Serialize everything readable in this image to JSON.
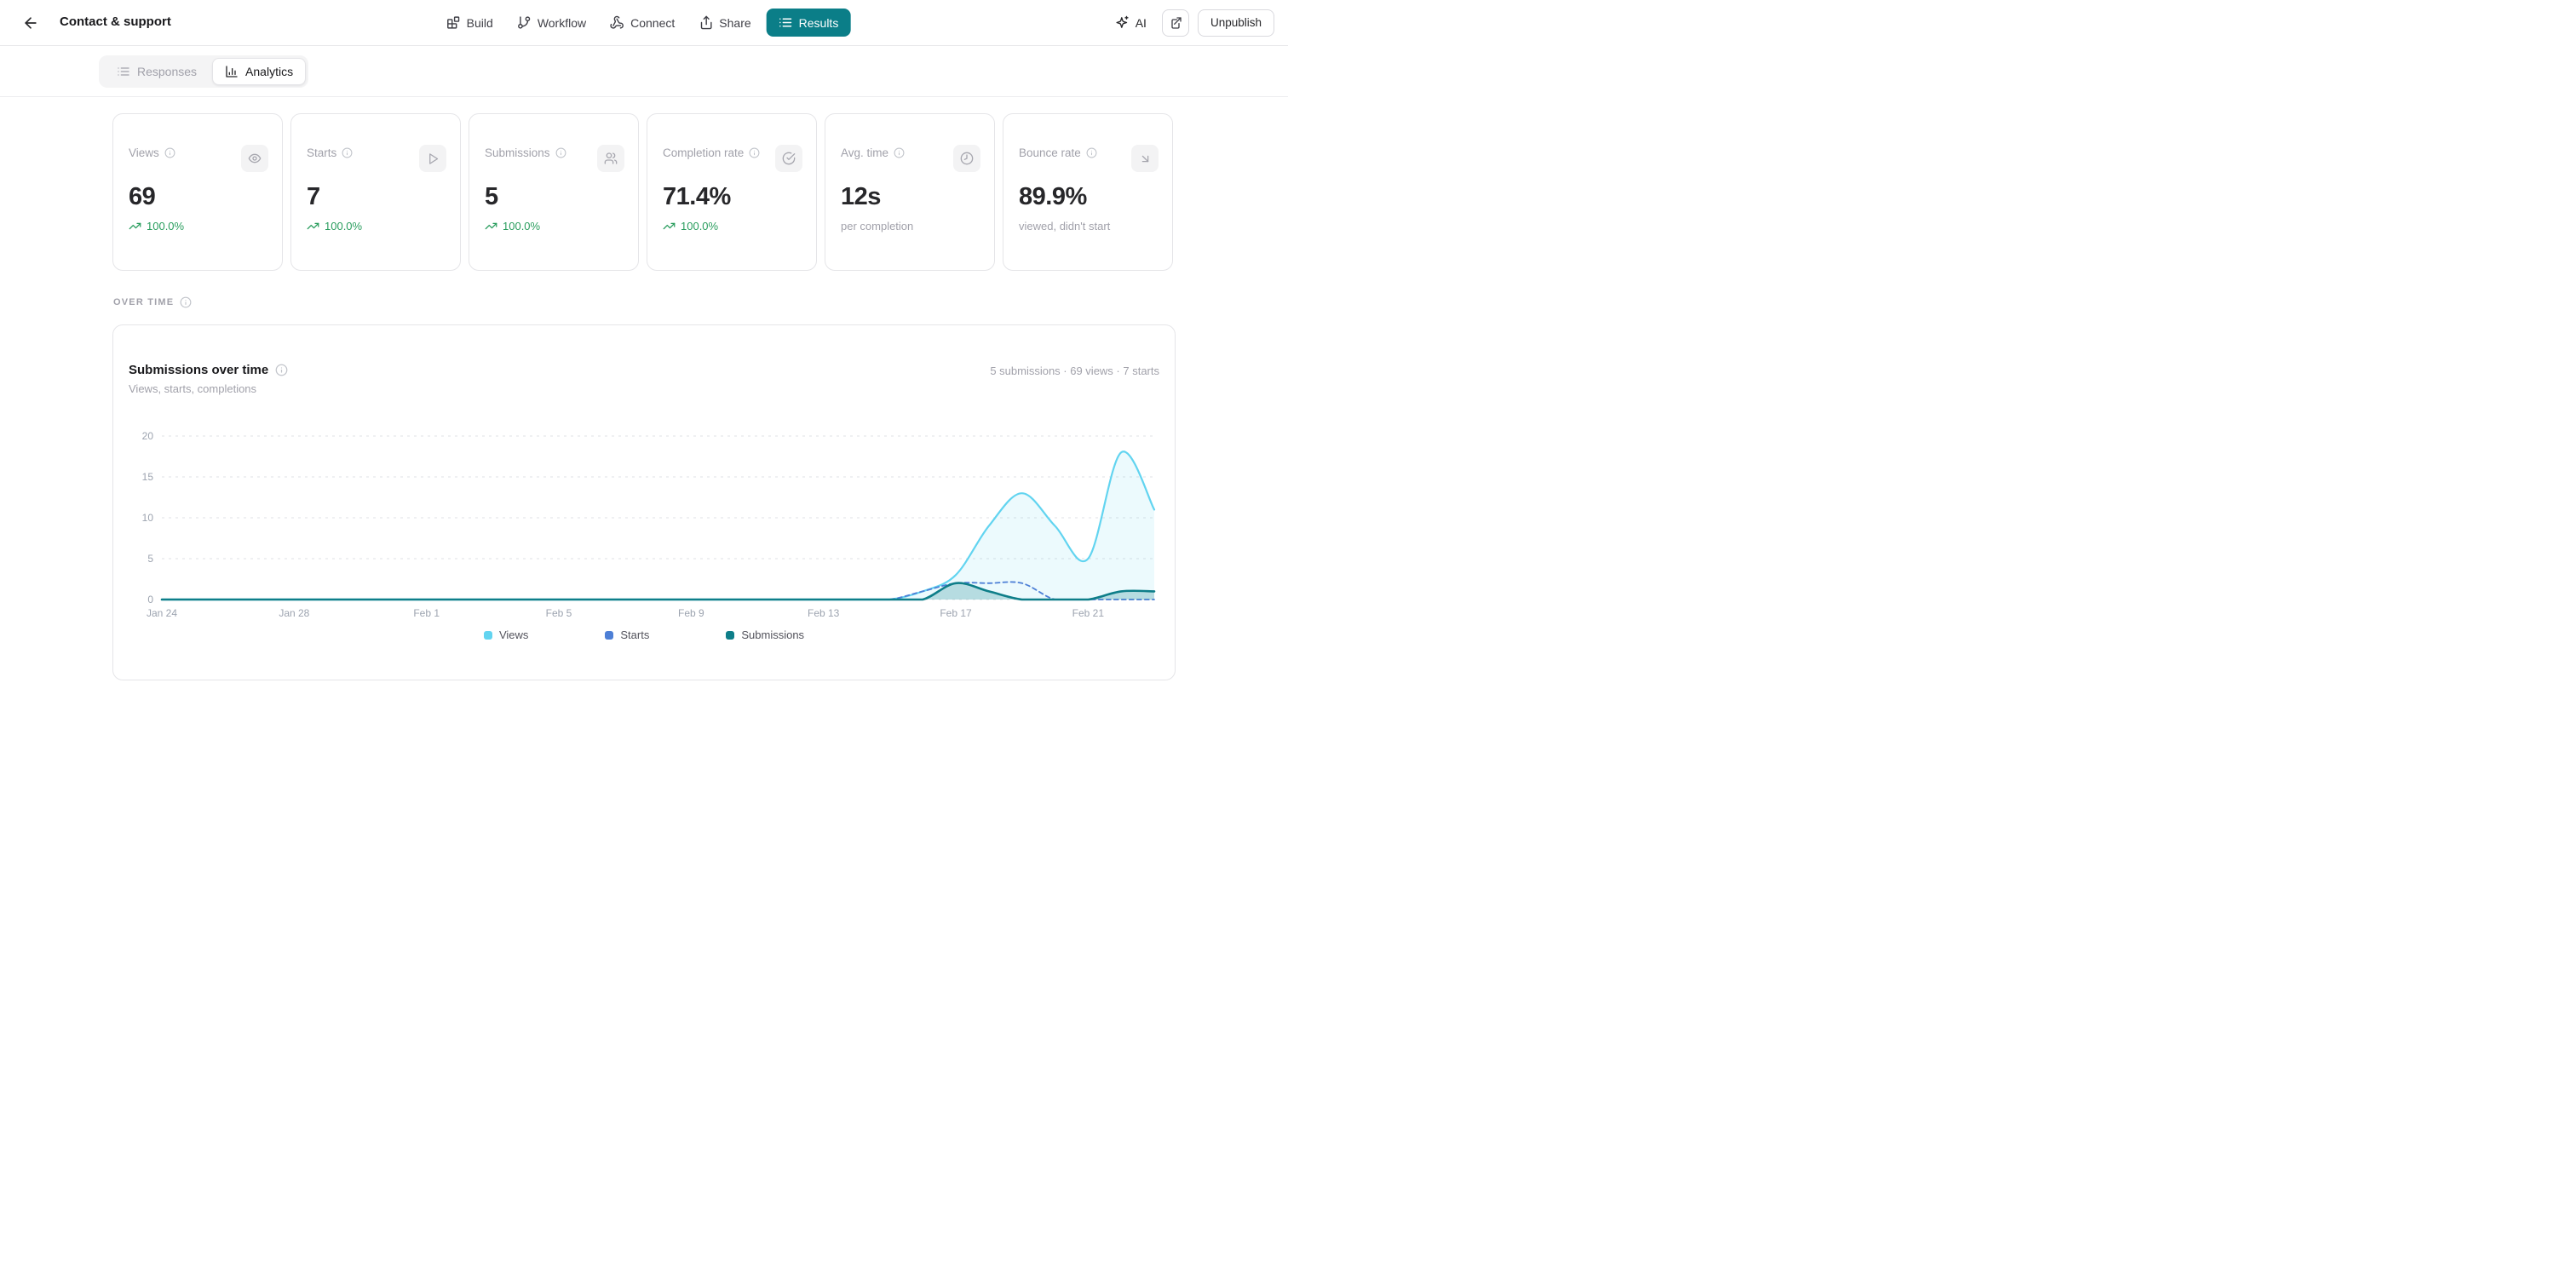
{
  "topbar": {
    "title": "Contact & support",
    "nav": {
      "build": "Build",
      "workflow": "Workflow",
      "connect": "Connect",
      "share": "Share",
      "results": "Results"
    },
    "ai_label": "AI",
    "unpublish_label": "Unpublish"
  },
  "tabs": {
    "responses": "Responses",
    "analytics": "Analytics"
  },
  "cards": [
    {
      "label": "Views",
      "value": "69",
      "trend": "100.0%"
    },
    {
      "label": "Starts",
      "value": "7",
      "trend": "100.0%"
    },
    {
      "label": "Submissions",
      "value": "5",
      "trend": "100.0%"
    },
    {
      "label": "Completion rate",
      "value": "71.4%",
      "trend": "100.0%"
    },
    {
      "label": "Avg. time",
      "value": "12s",
      "sub": "per completion"
    },
    {
      "label": "Bounce rate",
      "value": "89.9%",
      "sub": "viewed, didn't start"
    }
  ],
  "section": {
    "over_time": "OVER TIME"
  },
  "chart_card": {
    "title": "Submissions over time",
    "subtitle": "Views, starts, completions",
    "summary": "5 submissions · 69 views · 7 starts"
  },
  "colors": {
    "accent_teal": "#0b7e88",
    "trend_green": "#2b9e5f",
    "views_line": "#62d4f0",
    "starts_line": "#4d7fd6",
    "submissions_line": "#0e7e89"
  },
  "chart_data": {
    "type": "line",
    "title": "Submissions over time",
    "dates": [
      "Jan 24",
      "Jan 25",
      "Jan 26",
      "Jan 27",
      "Jan 28",
      "Jan 29",
      "Jan 30",
      "Jan 31",
      "Feb 1",
      "Feb 2",
      "Feb 3",
      "Feb 4",
      "Feb 5",
      "Feb 6",
      "Feb 7",
      "Feb 8",
      "Feb 9",
      "Feb 10",
      "Feb 11",
      "Feb 12",
      "Feb 13",
      "Feb 14",
      "Feb 15",
      "Feb 16",
      "Feb 17",
      "Feb 18",
      "Feb 19",
      "Feb 20",
      "Feb 21",
      "Feb 22",
      "Feb 23"
    ],
    "tick_every": 4,
    "xticks": [
      "Jan 24",
      "Jan 28",
      "Feb 1",
      "Feb 5",
      "Feb 9",
      "Feb 13",
      "Feb 17",
      "Feb 21"
    ],
    "ylim": [
      0,
      20
    ],
    "yticks": [
      0,
      5,
      10,
      15,
      20
    ],
    "grid": "dashed-horizontal",
    "legend_position": "bottom",
    "series": [
      {
        "name": "Views",
        "color": "#62d4f0",
        "style": "solid",
        "fill": "rgba(98,212,240,0.12)",
        "values": [
          0,
          0,
          0,
          0,
          0,
          0,
          0,
          0,
          0,
          0,
          0,
          0,
          0,
          0,
          0,
          0,
          0,
          0,
          0,
          0,
          0,
          0,
          0,
          1,
          3,
          9,
          13,
          9,
          5,
          18,
          11
        ]
      },
      {
        "name": "Starts",
        "color": "#4d7fd6",
        "style": "dashed",
        "fill": null,
        "values": [
          0,
          0,
          0,
          0,
          0,
          0,
          0,
          0,
          0,
          0,
          0,
          0,
          0,
          0,
          0,
          0,
          0,
          0,
          0,
          0,
          0,
          0,
          0,
          1,
          2,
          2,
          2,
          0,
          0,
          0,
          0
        ]
      },
      {
        "name": "Submissions",
        "color": "#0e7e89",
        "style": "solid",
        "fill": "rgba(14,126,137,0.24)",
        "values": [
          0,
          0,
          0,
          0,
          0,
          0,
          0,
          0,
          0,
          0,
          0,
          0,
          0,
          0,
          0,
          0,
          0,
          0,
          0,
          0,
          0,
          0,
          0,
          0,
          2,
          1,
          0,
          0,
          0,
          1,
          1
        ]
      }
    ],
    "totals": {
      "views": 69,
      "starts": 7,
      "submissions": 5
    }
  }
}
